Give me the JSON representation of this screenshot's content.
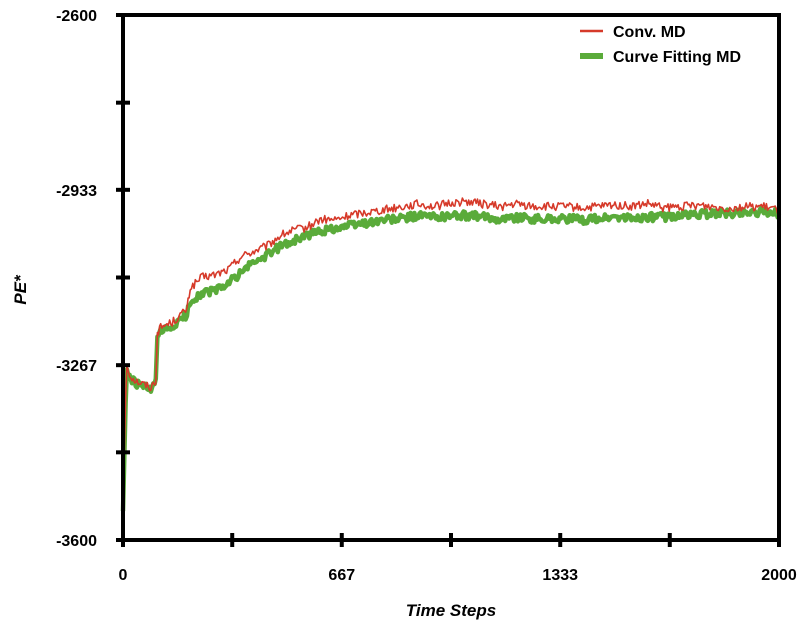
{
  "chart_data": {
    "type": "line",
    "title": "",
    "xlabel": "Time Steps",
    "ylabel": "PE*",
    "xlim": [
      0,
      2000
    ],
    "ylim": [
      -3600,
      -2600
    ],
    "x_ticks": [
      0,
      667,
      1333,
      2000
    ],
    "x_tick_labels": [
      "0",
      "667",
      "1333",
      "2000"
    ],
    "x_minor_ticks": [
      333,
      1000,
      1667
    ],
    "y_ticks": [
      -3600,
      -3267,
      -2933,
      -2600
    ],
    "y_tick_labels": [
      "-3600",
      "-3267",
      "-2933",
      "-2600"
    ],
    "y_minor_ticks": [
      -3433,
      -3100,
      -2767
    ],
    "grid": false,
    "legend_position": "top-right",
    "series": [
      {
        "name": "Conv. MD",
        "color": "#d63a2a",
        "x": [
          0,
          8,
          12,
          20,
          35,
          50,
          70,
          85,
          100,
          105,
          115,
          130,
          150,
          170,
          195,
          205,
          240,
          280,
          320,
          360,
          400,
          440,
          480,
          520,
          560,
          600,
          650,
          700,
          750,
          800,
          850,
          900,
          950,
          1000,
          1050,
          1100,
          1150,
          1200,
          1250,
          1300,
          1350,
          1400,
          1450,
          1500,
          1550,
          1600,
          1650,
          1700,
          1750,
          1800,
          1850,
          1900,
          1950,
          2000
        ],
        "y": [
          -3535,
          -3330,
          -3268,
          -3285,
          -3295,
          -3300,
          -3305,
          -3310,
          -3295,
          -3205,
          -3195,
          -3190,
          -3185,
          -3175,
          -3160,
          -3120,
          -3100,
          -3095,
          -3085,
          -3060,
          -3050,
          -3040,
          -3020,
          -3010,
          -3005,
          -2990,
          -2990,
          -2980,
          -2975,
          -2970,
          -2965,
          -2960,
          -2965,
          -2958,
          -2955,
          -2960,
          -2965,
          -2960,
          -2965,
          -2965,
          -2965,
          -2968,
          -2965,
          -2962,
          -2965,
          -2960,
          -2968,
          -2965,
          -2962,
          -2965,
          -2968,
          -2965,
          -2965,
          -2972
        ]
      },
      {
        "name": "Curve Fitting MD",
        "color": "#5aab3a",
        "x": [
          0,
          8,
          12,
          20,
          35,
          50,
          70,
          85,
          100,
          105,
          115,
          130,
          150,
          170,
          195,
          205,
          240,
          280,
          320,
          360,
          400,
          440,
          480,
          520,
          560,
          600,
          650,
          700,
          750,
          800,
          850,
          900,
          950,
          1000,
          1050,
          1100,
          1150,
          1200,
          1250,
          1300,
          1350,
          1400,
          1450,
          1500,
          1550,
          1600,
          1650,
          1700,
          1750,
          1800,
          1850,
          1900,
          1950,
          2000
        ],
        "y": [
          -3545,
          -3340,
          -3275,
          -3292,
          -3300,
          -3305,
          -3310,
          -3315,
          -3300,
          -3212,
          -3205,
          -3200,
          -3195,
          -3185,
          -3170,
          -3145,
          -3130,
          -3125,
          -3112,
          -3090,
          -3070,
          -3058,
          -3040,
          -3030,
          -3020,
          -3012,
          -3005,
          -3000,
          -2995,
          -2990,
          -2988,
          -2982,
          -2985,
          -2982,
          -2982,
          -2985,
          -2988,
          -2985,
          -2988,
          -2988,
          -2988,
          -2990,
          -2988,
          -2985,
          -2988,
          -2985,
          -2985,
          -2982,
          -2980,
          -2978,
          -2978,
          -2975,
          -2975,
          -2978
        ]
      }
    ]
  }
}
